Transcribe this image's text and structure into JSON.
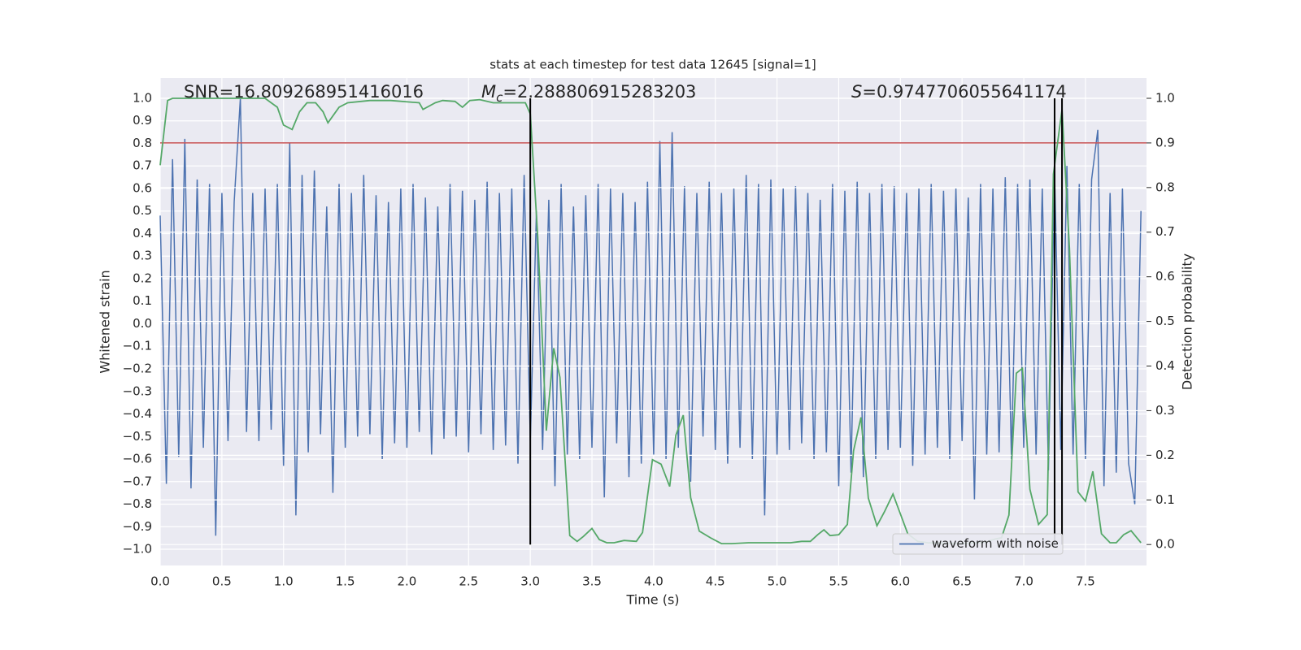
{
  "chart_data": {
    "type": "line",
    "title": "stats at each timestep for test data 12645 [signal=1]",
    "xlabel": "Time (s)",
    "ylabel": "Whitened strain",
    "y2label": "Detection probability",
    "xlim": [
      0,
      7.995
    ],
    "ylim": [
      -1.072,
      1.09
    ],
    "y2lim": [
      -0.047,
      1.0455
    ],
    "grid": true,
    "legend": "lower right",
    "xticks": [
      {
        "value": 0,
        "label": "0.0"
      },
      {
        "value": 0.5,
        "label": "0.5"
      },
      {
        "value": 1,
        "label": "1.0"
      },
      {
        "value": 1.5,
        "label": "1.5"
      },
      {
        "value": 2,
        "label": "2.0"
      },
      {
        "value": 2.5,
        "label": "2.5"
      },
      {
        "value": 3,
        "label": "3.0"
      },
      {
        "value": 3.5,
        "label": "3.5"
      },
      {
        "value": 4,
        "label": "4.0"
      },
      {
        "value": 4.5,
        "label": "4.5"
      },
      {
        "value": 5,
        "label": "5.0"
      },
      {
        "value": 5.5,
        "label": "5.5"
      },
      {
        "value": 6,
        "label": "6.0"
      },
      {
        "value": 6.5,
        "label": "6.5"
      },
      {
        "value": 7,
        "label": "7.0"
      },
      {
        "value": 7.5,
        "label": "7.5"
      }
    ],
    "yticks": [
      {
        "value": -1,
        "label": "−1.0"
      },
      {
        "value": -0.9,
        "label": "−0.9"
      },
      {
        "value": -0.8,
        "label": "−0.8"
      },
      {
        "value": -0.7,
        "label": "−0.7"
      },
      {
        "value": -0.6,
        "label": "−0.6"
      },
      {
        "value": -0.5,
        "label": "−0.5"
      },
      {
        "value": -0.4,
        "label": "−0.4"
      },
      {
        "value": -0.3,
        "label": "−0.3"
      },
      {
        "value": -0.2,
        "label": "−0.2"
      },
      {
        "value": -0.1,
        "label": "−0.1"
      },
      {
        "value": 0,
        "label": "0.0"
      },
      {
        "value": 0.1,
        "label": "0.1"
      },
      {
        "value": 0.2,
        "label": "0.2"
      },
      {
        "value": 0.3,
        "label": "0.3"
      },
      {
        "value": 0.4,
        "label": "0.4"
      },
      {
        "value": 0.5,
        "label": "0.5"
      },
      {
        "value": 0.6,
        "label": "0.6"
      },
      {
        "value": 0.7,
        "label": "0.7"
      },
      {
        "value": 0.8,
        "label": "0.8"
      },
      {
        "value": 0.9,
        "label": "0.9"
      },
      {
        "value": 1,
        "label": "1.0"
      }
    ],
    "y2ticks": [
      {
        "value": 0,
        "label": "0.0"
      },
      {
        "value": 0.1,
        "label": "0.1"
      },
      {
        "value": 0.2,
        "label": "0.2"
      },
      {
        "value": 0.3,
        "label": "0.3"
      },
      {
        "value": 0.4,
        "label": "0.4"
      },
      {
        "value": 0.5,
        "label": "0.5"
      },
      {
        "value": 0.6,
        "label": "0.6"
      },
      {
        "value": 0.7,
        "label": "0.7"
      },
      {
        "value": 0.8,
        "label": "0.8"
      },
      {
        "value": 0.9,
        "label": "0.9"
      },
      {
        "value": 1,
        "label": "1.0"
      }
    ],
    "series": [
      {
        "name": "waveform with noise",
        "color": "#4c72b0",
        "x": [
          0,
          0.05,
          0.1,
          0.15,
          0.2,
          0.25,
          0.3,
          0.35,
          0.4,
          0.45,
          0.5,
          0.55,
          0.6,
          0.65,
          0.7,
          0.75,
          0.8,
          0.85,
          0.9,
          0.95,
          1,
          1.05,
          1.1,
          1.15,
          1.2,
          1.25,
          1.3,
          1.35,
          1.4,
          1.45,
          1.5,
          1.55,
          1.6,
          1.65,
          1.7,
          1.75,
          1.8,
          1.85,
          1.9,
          1.95,
          2,
          2.05,
          2.1,
          2.15,
          2.2,
          2.25,
          2.3,
          2.35,
          2.4,
          2.45,
          2.5,
          2.55,
          2.6,
          2.65,
          2.7,
          2.75,
          2.8,
          2.85,
          2.9,
          2.95,
          3,
          3.05,
          3.1,
          3.15,
          3.2,
          3.25,
          3.3,
          3.35,
          3.4,
          3.45,
          3.5,
          3.55,
          3.6,
          3.65,
          3.7,
          3.75,
          3.8,
          3.85,
          3.9,
          3.95,
          4,
          4.05,
          4.1,
          4.15,
          4.2,
          4.25,
          4.3,
          4.35,
          4.4,
          4.45,
          4.5,
          4.55,
          4.6,
          4.65,
          4.7,
          4.75,
          4.8,
          4.85,
          4.9,
          4.95,
          5,
          5.05,
          5.1,
          5.15,
          5.2,
          5.25,
          5.3,
          5.35,
          5.4,
          5.45,
          5.5,
          5.55,
          5.6,
          5.65,
          5.7,
          5.75,
          5.8,
          5.85,
          5.9,
          5.95,
          6,
          6.05,
          6.1,
          6.15,
          6.2,
          6.25,
          6.3,
          6.35,
          6.4,
          6.45,
          6.5,
          6.55,
          6.6,
          6.65,
          6.7,
          6.75,
          6.8,
          6.85,
          6.9,
          6.95,
          7,
          7.05,
          7.1,
          7.15,
          7.2,
          7.25,
          7.3,
          7.35,
          7.4,
          7.45,
          7.5,
          7.55,
          7.6,
          7.65,
          7.7,
          7.75,
          7.8,
          7.85,
          7.9,
          7.95
        ],
        "values": [
          0.48,
          -0.71,
          0.73,
          -0.59,
          0.82,
          -0.73,
          0.64,
          -0.55,
          0.62,
          -0.94,
          0.58,
          -0.52,
          0.54,
          1.0,
          -0.48,
          0.58,
          -0.52,
          0.6,
          -0.47,
          0.62,
          -0.63,
          0.8,
          -0.85,
          0.66,
          -0.57,
          0.68,
          -0.49,
          0.52,
          -0.75,
          0.62,
          -0.55,
          0.58,
          -0.5,
          0.66,
          -0.49,
          0.57,
          -0.6,
          0.54,
          -0.53,
          0.6,
          -0.55,
          0.62,
          -0.48,
          0.56,
          -0.58,
          0.52,
          -0.51,
          0.62,
          -0.5,
          0.59,
          -0.57,
          0.55,
          -0.49,
          0.63,
          -0.56,
          0.58,
          -0.54,
          0.6,
          -0.62,
          0.66,
          -0.52,
          0.5,
          -0.56,
          0.55,
          -0.72,
          0.62,
          -0.58,
          0.52,
          -0.6,
          0.57,
          -0.55,
          0.62,
          -0.77,
          0.6,
          -0.53,
          0.58,
          -0.68,
          0.54,
          -0.62,
          0.63,
          -0.58,
          0.81,
          -0.6,
          0.85,
          -0.55,
          0.61,
          -0.7,
          0.58,
          -0.5,
          0.63,
          -0.56,
          0.58,
          -0.62,
          0.6,
          -0.55,
          0.66,
          -0.6,
          0.62,
          -0.85,
          0.64,
          -0.58,
          0.6,
          -0.56,
          0.61,
          -0.53,
          0.58,
          -0.6,
          0.55,
          -0.57,
          0.62,
          -0.72,
          0.59,
          -0.66,
          0.63,
          -0.68,
          0.58,
          -0.6,
          0.62,
          -0.56,
          0.61,
          -0.55,
          0.58,
          -0.63,
          0.6,
          -0.58,
          0.62,
          -0.55,
          0.59,
          -0.6,
          0.6,
          -0.52,
          0.56,
          -0.78,
          0.62,
          -0.58,
          0.6,
          -0.57,
          0.65,
          -0.6,
          0.62,
          -0.55,
          0.64,
          -0.58,
          0.6,
          -0.65,
          0.66,
          -0.56,
          0.7,
          -0.58,
          0.62,
          -0.6,
          0.64,
          0.86,
          -0.72,
          0.58,
          -0.66,
          0.6,
          -0.62,
          -0.8,
          0.5
        ]
      },
      {
        "color": "#55a868",
        "axis": "y2",
        "x": [
          0,
          0.06,
          0.1,
          0.3,
          0.5,
          0.7,
          0.85,
          0.9,
          0.95,
          1.0,
          1.07,
          1.13,
          1.19,
          1.26,
          1.32,
          1.36,
          1.45,
          1.52,
          1.7,
          1.87,
          2.1,
          2.13,
          2.23,
          2.29,
          2.39,
          2.45,
          2.51,
          2.59,
          2.7,
          2.79,
          2.96,
          3.0,
          3.06,
          3.13,
          3.19,
          3.24,
          3.32,
          3.38,
          3.43,
          3.5,
          3.56,
          3.62,
          3.68,
          3.76,
          3.86,
          3.91,
          3.99,
          4.06,
          4.13,
          4.18,
          4.24,
          4.3,
          4.37,
          4.46,
          4.55,
          4.63,
          4.77,
          5.0,
          5.11,
          5.2,
          5.27,
          5.33,
          5.38,
          5.43,
          5.5,
          5.57,
          5.62,
          5.68,
          5.74,
          5.81,
          5.87,
          5.94,
          5.99,
          6.06,
          6.14,
          6.22,
          6.48,
          6.68,
          6.78,
          6.82,
          6.88,
          6.94,
          6.99,
          7.05,
          7.12,
          7.19,
          7.24,
          7.31,
          7.37,
          7.44,
          7.5,
          7.56,
          7.63,
          7.7,
          7.75,
          7.81,
          7.87,
          7.95
        ],
        "values": [
          0.85,
          0.995,
          1.0,
          1.0,
          1.0,
          1.0,
          1.0,
          0.99,
          0.98,
          0.94,
          0.93,
          0.97,
          0.99,
          0.99,
          0.97,
          0.945,
          0.98,
          0.99,
          0.995,
          0.995,
          0.99,
          0.975,
          0.99,
          0.995,
          0.993,
          0.98,
          0.995,
          0.997,
          0.99,
          0.99,
          0.99,
          0.965,
          0.69,
          0.255,
          0.44,
          0.375,
          0.02,
          0.007,
          0.018,
          0.036,
          0.011,
          0.004,
          0.004,
          0.009,
          0.007,
          0.027,
          0.19,
          0.18,
          0.13,
          0.245,
          0.29,
          0.105,
          0.03,
          0.015,
          0.002,
          0.002,
          0.004,
          0.004,
          0.004,
          0.007,
          0.007,
          0.022,
          0.033,
          0.02,
          0.022,
          0.045,
          0.21,
          0.285,
          0.104,
          0.042,
          0.073,
          0.113,
          0.076,
          0.024,
          0.007,
          0.004,
          0.002,
          0.005,
          0.013,
          0.015,
          0.066,
          0.384,
          0.395,
          0.124,
          0.045,
          0.067,
          0.83,
          0.975,
          0.665,
          0.118,
          0.097,
          0.164,
          0.024,
          0.004,
          0.004,
          0.022,
          0.031,
          0.004
        ]
      }
    ],
    "hlines": [
      {
        "y": 0.9,
        "axis": "y2",
        "color": "#c44e52"
      }
    ],
    "vlines": {
      "x": [
        3.0,
        7.25,
        7.31
      ],
      "ymin": 0,
      "ymax": 1,
      "axis": "y2",
      "color": "#000000"
    },
    "annotations": [
      {
        "text": "SNR=16.809268951416016"
      },
      {
        "symbol": "M",
        "subscript": "c",
        "text": "=2.288806915283203"
      },
      {
        "symbol": "S",
        "text": "=0.9747706055641174"
      }
    ]
  }
}
